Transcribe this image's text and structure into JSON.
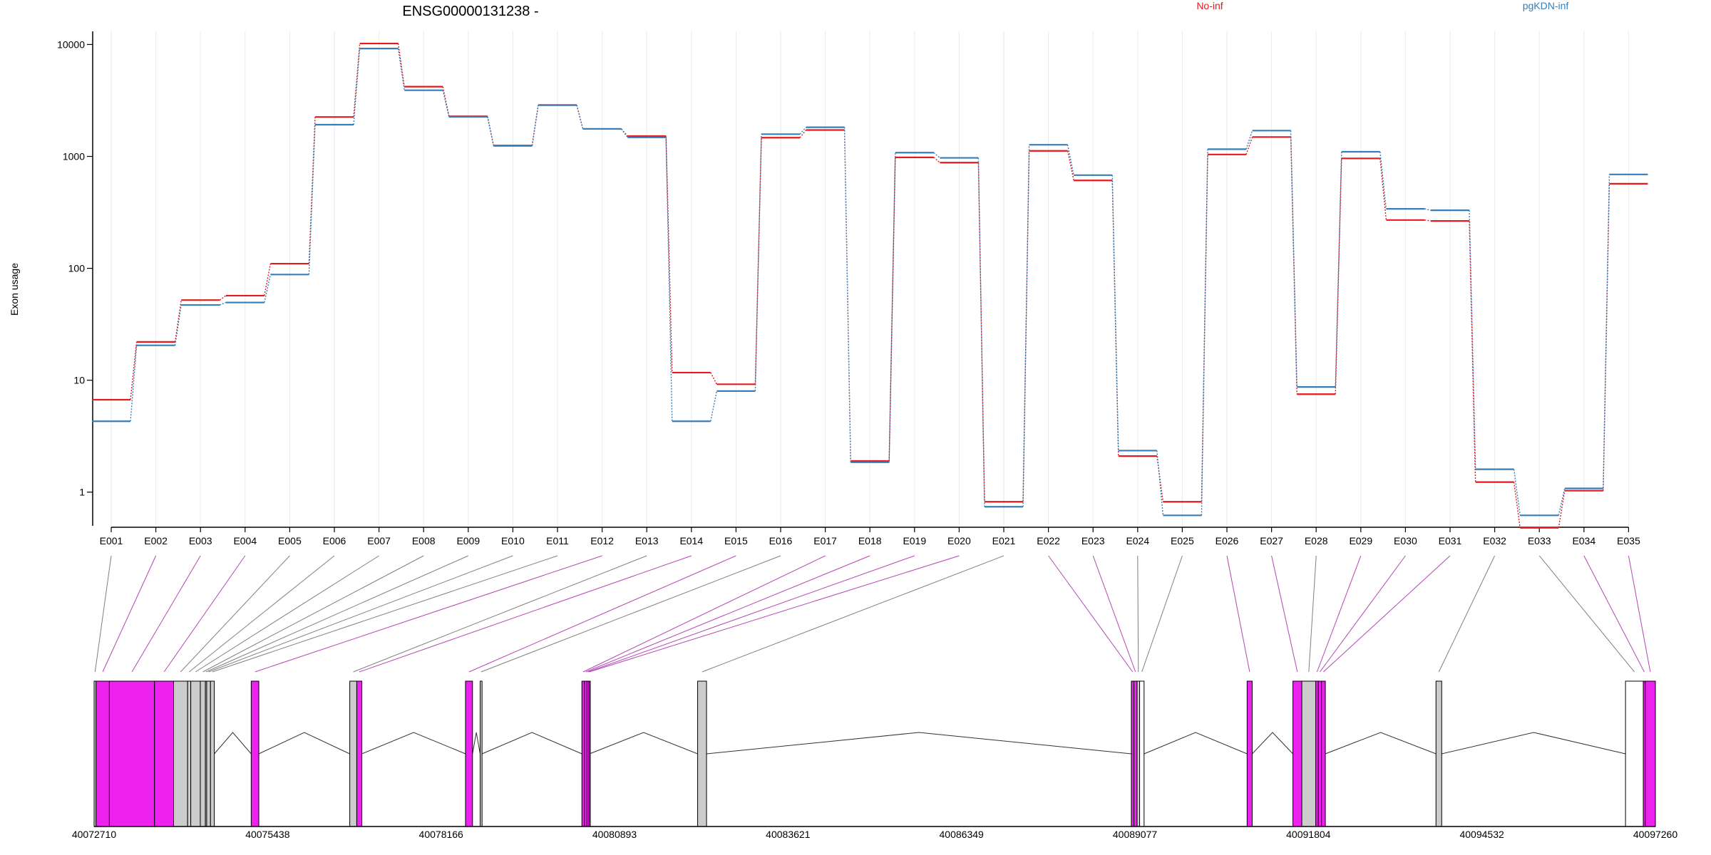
{
  "chart_data": {
    "type": "line",
    "title": "ENSG00000131238 -",
    "ylabel": "Exon usage",
    "xlabel": "",
    "y_scale": "log",
    "ylim": [
      0.5,
      12000
    ],
    "y_ticks": [
      "1",
      "10",
      "100",
      "1000",
      "10000"
    ],
    "y_tick_values": [
      1,
      10,
      100,
      1000,
      10000
    ],
    "grid": "vertical lines at exons",
    "categories": [
      "E001",
      "E002",
      "E003",
      "E004",
      "E005",
      "E006",
      "E007",
      "E008",
      "E009",
      "E010",
      "E011",
      "E012",
      "E013",
      "E014",
      "E015",
      "E016",
      "E017",
      "E018",
      "E019",
      "E020",
      "E021",
      "E022",
      "E023",
      "E024",
      "E025",
      "E026",
      "E027",
      "E028",
      "E029",
      "E030",
      "E031",
      "E032",
      "E033",
      "E034",
      "E035"
    ],
    "series": [
      {
        "name": "No-inf",
        "color": "#e41a1c",
        "values": [
          6.7,
          22,
          52,
          57,
          110,
          2250,
          10200,
          4200,
          2280,
          1250,
          2880,
          1760,
          1520,
          11.7,
          9.2,
          1470,
          1720,
          1.9,
          980,
          880,
          0.82,
          1120,
          610,
          2.1,
          0.82,
          1040,
          1490,
          7.5,
          960,
          270,
          265,
          1.23,
          0.48,
          1.03,
          570
        ]
      },
      {
        "name": "pgKDN-inf",
        "color": "#377eb8",
        "values": [
          4.3,
          20.5,
          47,
          49.5,
          88,
          1920,
          9200,
          3900,
          2260,
          1240,
          2870,
          1760,
          1480,
          4.3,
          8.0,
          1580,
          1820,
          1.85,
          1080,
          970,
          0.74,
          1270,
          680,
          2.35,
          0.62,
          1160,
          1700,
          8.7,
          1100,
          340,
          330,
          1.6,
          0.62,
          1.08,
          690
        ]
      }
    ],
    "gene_model": {
      "genomic_ticks": [
        "40072710",
        "40075438",
        "40078166",
        "40080893",
        "40083621",
        "40086349",
        "40089077",
        "40091804",
        "40094532",
        "40097260"
      ],
      "genomic_tick_values": [
        40072710,
        40075438,
        40078166,
        40080893,
        40083621,
        40086349,
        40089077,
        40091804,
        40094532,
        40097260
      ],
      "highlight_color": "#ee22ee",
      "exons": [
        {
          "id": "E001",
          "start": 40072710,
          "end": 40072740,
          "sig": false
        },
        {
          "id": "E002",
          "start": 40072740,
          "end": 40072950,
          "sig": true
        },
        {
          "id": "E003",
          "start": 40072950,
          "end": 40073660,
          "sig": true
        },
        {
          "id": "E004",
          "start": 40073660,
          "end": 40073960,
          "sig": true
        },
        {
          "id": "E005",
          "start": 40073960,
          "end": 40074180,
          "sig": false
        },
        {
          "id": "E006",
          "start": 40074180,
          "end": 40074230,
          "sig": false
        },
        {
          "id": "E007",
          "start": 40074230,
          "end": 40074380,
          "sig": false
        },
        {
          "id": "E008",
          "start": 40074380,
          "end": 40074460,
          "sig": false
        },
        {
          "id": "E009",
          "start": 40074460,
          "end": 40074480,
          "sig": false
        },
        {
          "id": "E010",
          "start": 40074480,
          "end": 40074540,
          "sig": false
        },
        {
          "id": "E011",
          "start": 40074540,
          "end": 40074600,
          "sig": false
        },
        {
          "id": "E012",
          "start": 40075180,
          "end": 40075300,
          "sig": true
        },
        {
          "id": "E013",
          "start": 40076730,
          "end": 40076840,
          "sig": false
        },
        {
          "id": "E014",
          "start": 40076840,
          "end": 40076920,
          "sig": true
        },
        {
          "id": "E015",
          "start": 40078550,
          "end": 40078660,
          "sig": true
        },
        {
          "id": "E016",
          "start": 40078780,
          "end": 40078810,
          "sig": false
        },
        {
          "id": "E017",
          "start": 40080380,
          "end": 40080420,
          "sig": true
        },
        {
          "id": "E018",
          "start": 40080420,
          "end": 40080460,
          "sig": true
        },
        {
          "id": "E019",
          "start": 40080460,
          "end": 40080490,
          "sig": true
        },
        {
          "id": "E020",
          "start": 40080490,
          "end": 40080500,
          "sig": true
        },
        {
          "id": "E021",
          "start": 40082200,
          "end": 40082340,
          "sig": false
        },
        {
          "id": "E022",
          "start": 40089020,
          "end": 40089060,
          "sig": true
        },
        {
          "id": "E023",
          "start": 40089060,
          "end": 40089110,
          "sig": true
        },
        {
          "id": "E024",
          "start": 40089110,
          "end": 40089150,
          "sig": false
        },
        {
          "id": "E025",
          "start": 40089150,
          "end": 40089220,
          "sig": false
        },
        {
          "id": "E026",
          "start": 40090840,
          "end": 40090920,
          "sig": true
        },
        {
          "id": "E027",
          "start": 40091560,
          "end": 40091700,
          "sig": true
        },
        {
          "id": "E028",
          "start": 40091700,
          "end": 40091920,
          "sig": false
        },
        {
          "id": "E029",
          "start": 40091920,
          "end": 40091960,
          "sig": true
        },
        {
          "id": "E030",
          "start": 40091960,
          "end": 40092010,
          "sig": true
        },
        {
          "id": "E031",
          "start": 40092010,
          "end": 40092070,
          "sig": true
        },
        {
          "id": "E032",
          "start": 40093810,
          "end": 40093900,
          "sig": false
        },
        {
          "id": "E033",
          "start": 40096790,
          "end": 40097070,
          "sig": false
        },
        {
          "id": "E034",
          "start": 40097070,
          "end": 40097100,
          "sig": true
        },
        {
          "id": "E035",
          "start": 40097100,
          "end": 40097260,
          "sig": true
        }
      ]
    }
  }
}
